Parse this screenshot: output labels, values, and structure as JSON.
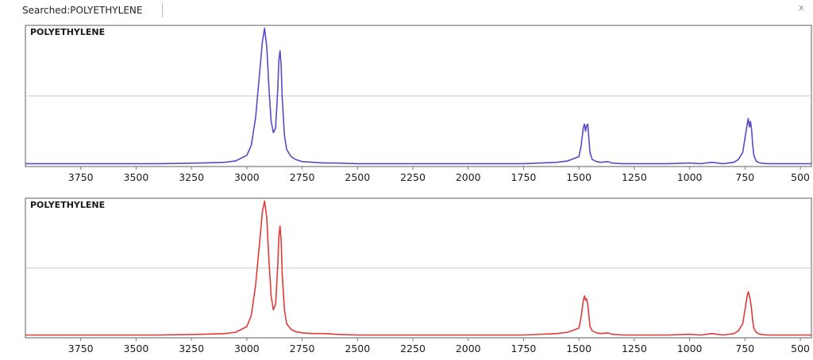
{
  "header": {
    "title": "Searched:POLYETHYLENE",
    "close_label": "x"
  },
  "colors": {
    "top_series": "#5a48c8",
    "bottom_series": "#e03a3a",
    "frame": "#777777",
    "gridline": "#c8c8c8"
  },
  "chart_data": [
    {
      "type": "line",
      "title": "POLYETHYLENE",
      "xlabel": "",
      "ylabel": "",
      "x_reversed": true,
      "xlim": [
        4000,
        450
      ],
      "ylim": [
        0,
        1.0
      ],
      "x_ticks": [
        3750,
        3500,
        3250,
        3000,
        2750,
        2500,
        2250,
        2000,
        1750,
        1500,
        1250,
        1000,
        750,
        500
      ],
      "grid": "horizontal",
      "series": [
        {
          "color": "#5a48c8",
          "x": [
            4000,
            3800,
            3600,
            3400,
            3200,
            3100,
            3050,
            3000,
            2980,
            2960,
            2940,
            2930,
            2920,
            2910,
            2900,
            2890,
            2880,
            2870,
            2860,
            2855,
            2850,
            2845,
            2840,
            2830,
            2820,
            2800,
            2780,
            2750,
            2700,
            2650,
            2600,
            2500,
            2300,
            2100,
            1900,
            1750,
            1600,
            1550,
            1500,
            1490,
            1480,
            1475,
            1470,
            1465,
            1460,
            1455,
            1450,
            1440,
            1420,
            1400,
            1370,
            1350,
            1300,
            1200,
            1100,
            1000,
            950,
            900,
            850,
            800,
            780,
            760,
            750,
            740,
            735,
            730,
            725,
            720,
            715,
            710,
            700,
            690,
            680,
            650,
            600,
            500,
            450
          ],
          "y": [
            0.02,
            0.02,
            0.02,
            0.02,
            0.025,
            0.03,
            0.04,
            0.08,
            0.15,
            0.35,
            0.7,
            0.88,
            0.98,
            0.85,
            0.55,
            0.32,
            0.24,
            0.27,
            0.55,
            0.76,
            0.82,
            0.72,
            0.48,
            0.22,
            0.12,
            0.07,
            0.05,
            0.035,
            0.03,
            0.025,
            0.025,
            0.02,
            0.02,
            0.02,
            0.02,
            0.02,
            0.03,
            0.04,
            0.07,
            0.15,
            0.28,
            0.3,
            0.25,
            0.29,
            0.3,
            0.2,
            0.1,
            0.05,
            0.035,
            0.03,
            0.035,
            0.025,
            0.02,
            0.02,
            0.02,
            0.025,
            0.02,
            0.03,
            0.02,
            0.03,
            0.05,
            0.1,
            0.2,
            0.3,
            0.34,
            0.28,
            0.32,
            0.26,
            0.15,
            0.08,
            0.04,
            0.03,
            0.025,
            0.02,
            0.02,
            0.02,
            0.02
          ]
        }
      ]
    },
    {
      "type": "line",
      "title": "POLYETHYLENE",
      "xlabel": "",
      "ylabel": "",
      "x_reversed": true,
      "xlim": [
        4000,
        450
      ],
      "ylim": [
        0,
        1.0
      ],
      "x_ticks": [
        3750,
        3500,
        3250,
        3000,
        2750,
        2500,
        2250,
        2000,
        1750,
        1500,
        1250,
        1000,
        750,
        500
      ],
      "grid": "horizontal",
      "series": [
        {
          "color": "#e03a3a",
          "x": [
            4000,
            3800,
            3600,
            3400,
            3200,
            3100,
            3050,
            3000,
            2980,
            2960,
            2940,
            2930,
            2920,
            2910,
            2900,
            2890,
            2880,
            2870,
            2860,
            2855,
            2850,
            2845,
            2840,
            2830,
            2820,
            2800,
            2780,
            2750,
            2700,
            2650,
            2600,
            2500,
            2300,
            2100,
            1900,
            1750,
            1600,
            1550,
            1500,
            1490,
            1480,
            1475,
            1470,
            1465,
            1460,
            1455,
            1450,
            1440,
            1420,
            1400,
            1370,
            1350,
            1300,
            1200,
            1100,
            1000,
            950,
            900,
            850,
            800,
            780,
            760,
            750,
            740,
            735,
            730,
            725,
            720,
            715,
            710,
            700,
            690,
            680,
            650,
            600,
            500,
            450
          ],
          "y": [
            0.02,
            0.02,
            0.02,
            0.02,
            0.025,
            0.03,
            0.04,
            0.08,
            0.16,
            0.38,
            0.72,
            0.9,
            0.98,
            0.86,
            0.55,
            0.3,
            0.2,
            0.24,
            0.52,
            0.73,
            0.8,
            0.7,
            0.45,
            0.2,
            0.1,
            0.06,
            0.045,
            0.035,
            0.03,
            0.03,
            0.025,
            0.02,
            0.02,
            0.02,
            0.02,
            0.02,
            0.03,
            0.04,
            0.07,
            0.15,
            0.27,
            0.3,
            0.27,
            0.28,
            0.24,
            0.16,
            0.08,
            0.05,
            0.035,
            0.03,
            0.035,
            0.025,
            0.02,
            0.02,
            0.02,
            0.025,
            0.02,
            0.03,
            0.02,
            0.03,
            0.05,
            0.1,
            0.2,
            0.3,
            0.33,
            0.3,
            0.26,
            0.2,
            0.12,
            0.07,
            0.04,
            0.03,
            0.025,
            0.02,
            0.02,
            0.02,
            0.02
          ]
        }
      ]
    }
  ]
}
